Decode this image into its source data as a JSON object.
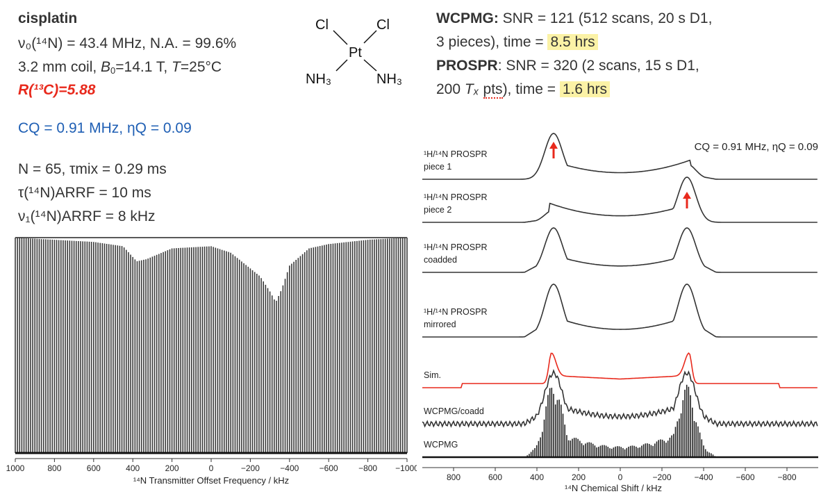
{
  "left_info": {
    "compound": "cisplatin",
    "line1": "ν₀(¹⁴N) = 43.4 MHz, N.A. = 99.6%",
    "line2_a": "3.2 mm coil, ",
    "line2_b0": "B",
    "line2_b0_sub": "0",
    "line2_b": "=14.1 T, ",
    "line2_t": "T",
    "line2_c": "=25°C",
    "r13c": "R(¹³C)=5.88",
    "cq_line": "CQ = 0.91 MHz, ηQ = 0.09",
    "n_line": "N = 65, τmix = 0.29 ms",
    "tau_line": "τ(¹⁴N)ARRF = 10 ms",
    "nu_line": "ν₁(¹⁴N)ARRF = 8 kHz"
  },
  "structure": {
    "cl_left": "Cl",
    "cl_right": "Cl",
    "pt": "Pt",
    "nh3_left": "NH₃",
    "nh3_right": "NH₃"
  },
  "right_info": {
    "wcpmg_label": "WCPMG:",
    "wcpmg_text1": " SNR = 121 (512 scans, 20 s D1,",
    "wcpmg_text2": "3 pieces), time = ",
    "wcpmg_time": "8.5 hrs",
    "prospr_label": "PROSPR",
    "prospr_text1": ": SNR = 320 (2 scans, 15 s D1,",
    "prospr_text2a": "200 ",
    "prospr_tx": "Tₓ",
    "prospr_pts": "pts",
    "prospr_text2b": "), time = ",
    "prospr_time": "1.6 hrs"
  },
  "chart_data": [
    {
      "type": "line",
      "title": "",
      "xlabel": "¹⁴N Transmitter Offset Frequency / kHz",
      "ylabel": "",
      "xlim": [
        1000,
        -1000
      ],
      "xticks": [
        1000,
        800,
        600,
        400,
        200,
        0,
        -200,
        -400,
        -600,
        -800,
        -1000
      ],
      "xtick_labels": [
        "1000",
        "800",
        "600",
        "400",
        "200",
        "0",
        "−200",
        "−400",
        "−600",
        "−800",
        "−1000"
      ],
      "description_series": "ARRF echo-train intensity profile vs transmitter offset",
      "series": [
        {
          "name": "echo intensity envelope",
          "x": [
            1000,
            800,
            600,
            450,
            380,
            330,
            200,
            0,
            -100,
            -250,
            -300,
            -330,
            -360,
            -400,
            -500,
            -600,
            -800,
            -1000
          ],
          "y": [
            1.0,
            0.99,
            0.98,
            0.96,
            0.89,
            0.9,
            0.95,
            0.96,
            0.93,
            0.82,
            0.75,
            0.7,
            0.76,
            0.87,
            0.95,
            0.97,
            0.99,
            1.0
          ]
        }
      ]
    },
    {
      "type": "line",
      "title": "",
      "xlabel": "¹⁴N Chemical Shift / kHz",
      "ylabel": "",
      "xlim": [
        950,
        -950
      ],
      "xticks": [
        800,
        600,
        400,
        200,
        0,
        -200,
        -400,
        -600,
        -800
      ],
      "xtick_labels": [
        "800",
        "600",
        "400",
        "200",
        "0",
        "−200",
        "−400",
        "−600",
        "−800"
      ],
      "annotation": "CQ = 0.91 MHz, ηQ = 0.09",
      "series": [
        {
          "name": "¹H/¹⁴N PROSPR piece 1",
          "label1": "¹H/¹⁴N PROSPR",
          "label2": "piece 1",
          "color": "#333333",
          "peak_left": 1.0,
          "peak_right": 0.33
        },
        {
          "name": "¹H/¹⁴N PROSPR piece 2",
          "label1": "¹H/¹⁴N PROSPR",
          "label2": "piece 2",
          "color": "#333333",
          "peak_left": 0.27,
          "peak_right": 1.0
        },
        {
          "name": "¹H/¹⁴N PROSPR coadded",
          "label1": "¹H/¹⁴N PROSPR",
          "label2": "coadded",
          "color": "#333333",
          "peak_left": 1.0,
          "peak_right": 1.0
        },
        {
          "name": "¹H/¹⁴N PROSPR mirrored",
          "label1": "¹H/¹⁴N PROSPR",
          "label2": "mirrored",
          "color": "#333333",
          "peak_left": 1.0,
          "peak_right": 1.0
        },
        {
          "name": "Sim.",
          "label1": "Sim.",
          "label2": "",
          "color": "#e8291c",
          "peak_left": 1.0,
          "peak_right": 1.0
        },
        {
          "name": "WCPMG/coadd",
          "label1": "WCPMG/coadd",
          "label2": "",
          "color": "#333333",
          "peak_left": 1.0,
          "peak_right": 1.0
        },
        {
          "name": "WCPMG",
          "label1": "WCPMG",
          "label2": "",
          "color": "#222222",
          "peak_left": 1.0,
          "peak_right": 0.95
        }
      ]
    }
  ],
  "colors": {
    "accent_red": "#e8291c",
    "accent_blue": "#1f5fb4",
    "highlight": "#fbf2a6"
  }
}
